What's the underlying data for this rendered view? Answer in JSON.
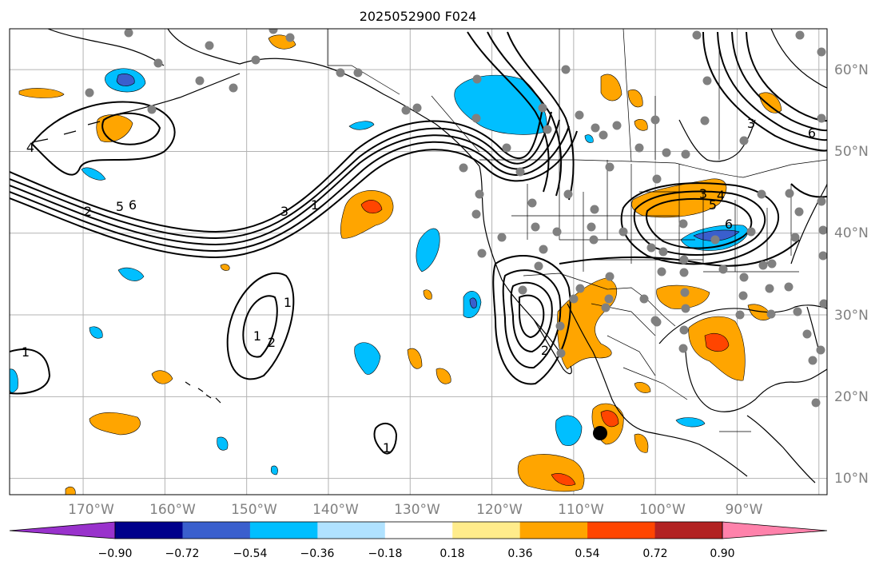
{
  "title": "2025052900 F024",
  "map": {
    "lon_range": [
      -179,
      -79
    ],
    "lat_range": [
      8,
      65
    ],
    "lon_ticks": [
      "170°W",
      "160°W",
      "150°W",
      "140°W",
      "130°W",
      "120°W",
      "110°W",
      "100°W",
      "90°W"
    ],
    "lat_ticks": [
      "60°N",
      "50°N",
      "40°N",
      "30°N",
      "20°N",
      "10°N"
    ],
    "gridlines": true
  },
  "colorbar": {
    "ticks": [
      "−0.90",
      "−0.72",
      "−0.54",
      "−0.36",
      "−0.18",
      "0.18",
      "0.36",
      "0.54",
      "0.72",
      "0.90"
    ],
    "colors": [
      "#9932cc",
      "#00008b",
      "#3a5fcd",
      "#00bfff",
      "#b0e2ff",
      "#ffffff",
      "#ffec8b",
      "#ffa500",
      "#ff4500",
      "#b22222",
      "#ff82ab"
    ],
    "extend": "both"
  },
  "contour_labels": [
    "4",
    "2",
    "5",
    "6",
    "3",
    "1",
    "1",
    "2",
    "1",
    "1",
    "2",
    "1",
    "3",
    "4",
    "5",
    "6",
    "3",
    "6"
  ],
  "colors": {
    "gridline": "#b3b3b3",
    "station": "#808080",
    "contour": "#000000",
    "blue": "#00bfff",
    "orange": "#ffa500",
    "red": "#ff4500",
    "navy": "#3a5fcd"
  }
}
